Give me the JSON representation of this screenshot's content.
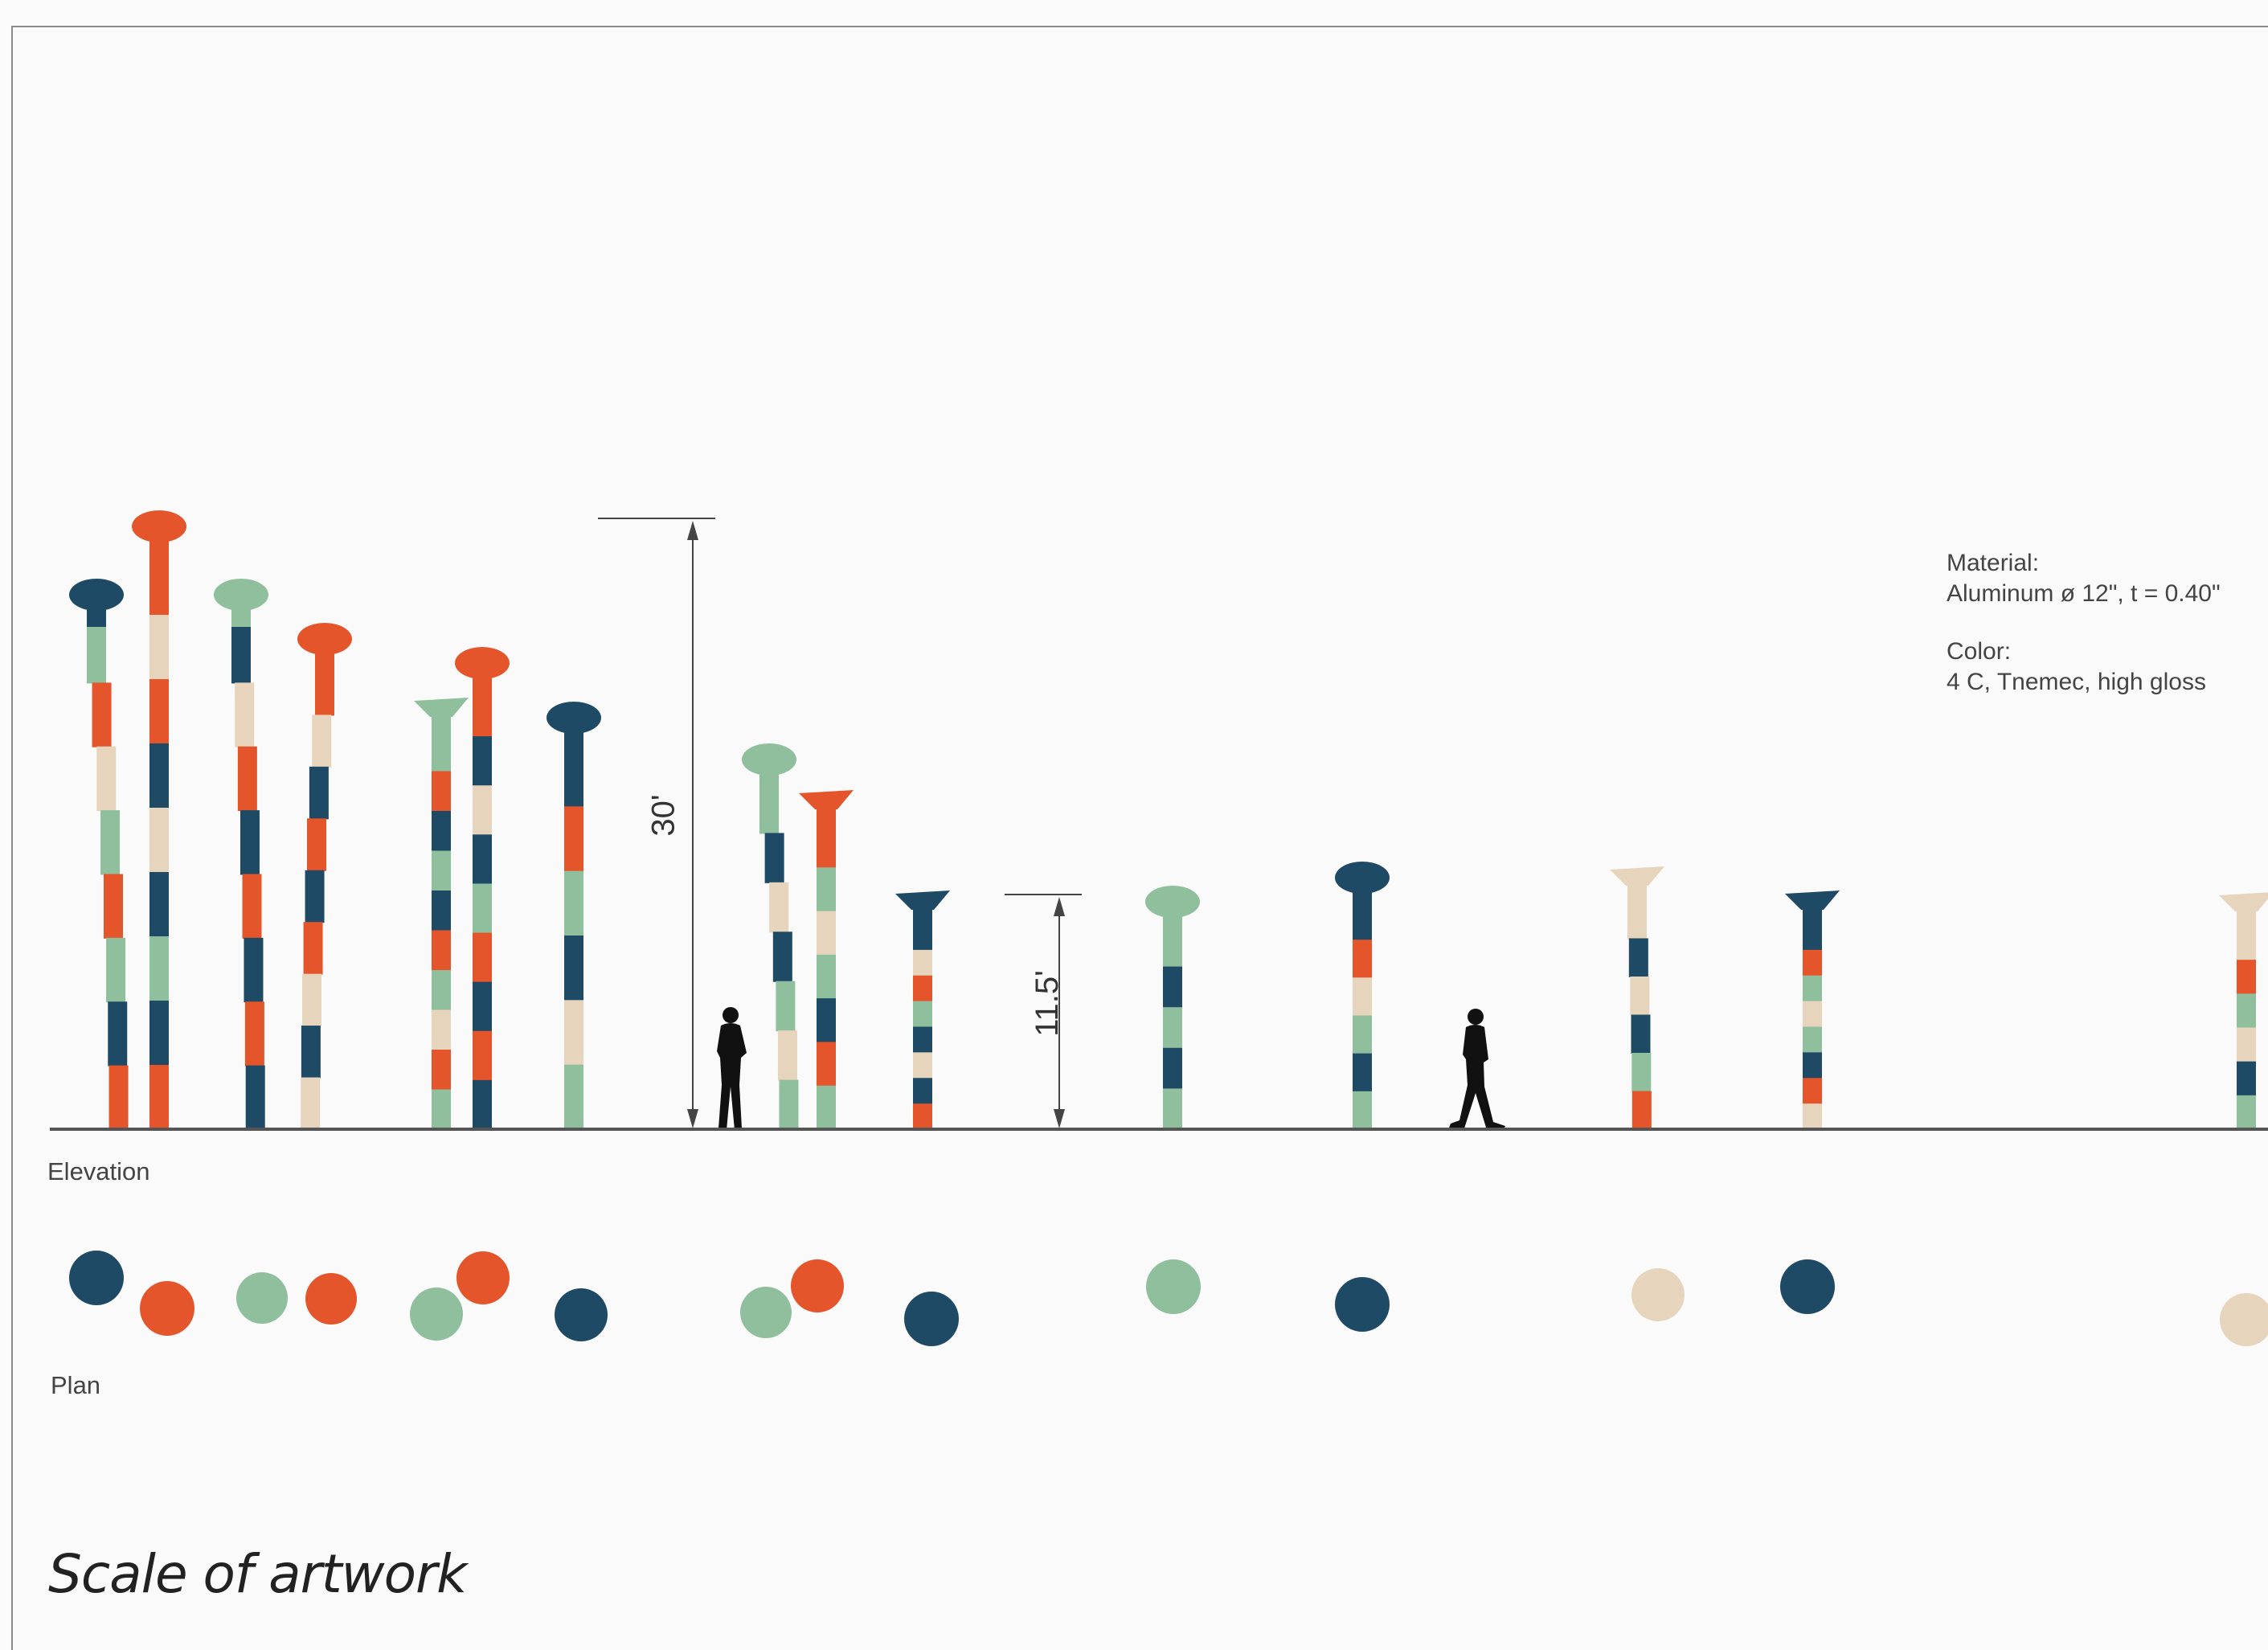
{
  "labels": {
    "elevation": "Elevation",
    "plan": "Plan",
    "caption": "Scale of artwork",
    "dim_tall": "30'",
    "dim_short": "11.5'"
  },
  "spec": {
    "material_heading": "Material:",
    "material_value": "Aluminum ø 12\", t = 0.40\"",
    "color_heading": "Color:",
    "color_value": "4 C, Tnemec, high gloss"
  },
  "palette": {
    "navy": "#1f4a66",
    "orange": "#e4552b",
    "sage": "#8fbf9d",
    "sand": "#e6d5bc",
    "ground": "#555555"
  },
  "elements": {
    "pole_count": 16,
    "human_figure_count": 2,
    "plan_disc_count": 16
  }
}
